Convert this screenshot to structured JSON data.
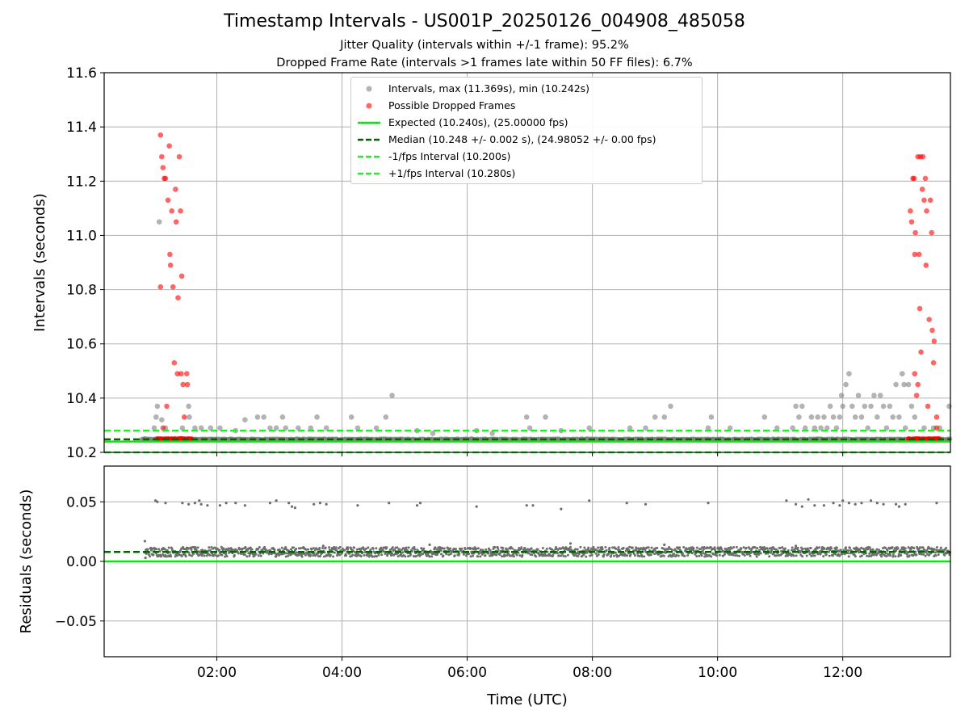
{
  "header": {
    "title": "Timestamp Intervals - US001P_20250126_004908_485058",
    "subtitle1": "Jitter Quality (intervals within +/-1 frame): 95.2%",
    "subtitle2": "Dropped Frame Rate (intervals >1 frames late within 50 FF files): 6.7%"
  },
  "colors": {
    "interval_points": "#808080",
    "dropped_points": "#ff0000",
    "expected_line": "#00ee00",
    "median_line": "#006400",
    "fps_interval_lines": "#22ee22",
    "residual_points": "#6e6e6e"
  },
  "chart_data": [
    {
      "type": "scatter",
      "panel": "top",
      "ylabel": "Intervals (seconds)",
      "ylim": [
        10.2,
        11.6
      ],
      "xlim_hours": [
        0.2,
        13.72
      ],
      "yticks": [
        "10.2",
        "10.4",
        "10.6",
        "10.8",
        "11.0",
        "11.2",
        "11.4",
        "11.6"
      ],
      "grid": true,
      "legend_position": "upper center",
      "legend": [
        "Intervals, max (11.369s), min (10.242s)",
        "Possible Dropped Frames",
        "Expected (10.240s), (25.00000 fps)",
        "Median (10.248 +/- 0.002 s), (24.98052 +/- 0.00 fps)",
        "-1/fps Interval (10.200s)",
        "+1/fps Interval (10.280s)"
      ],
      "reference_lines": {
        "expected": 10.24,
        "median": 10.248,
        "minus_1fps": 10.2,
        "plus_1fps": 10.28
      },
      "baseline_band": {
        "x_start": 0.8,
        "x_end": 13.72,
        "y_center": 10.248,
        "spread": 0.004
      },
      "series": [
        {
          "name": "Intervals, max (11.369s), min (10.242s)",
          "points": [
            [
              0.85,
              10.25
            ],
            [
              1.0,
              10.29
            ],
            [
              1.03,
              10.33
            ],
            [
              1.05,
              10.37
            ],
            [
              1.08,
              11.05
            ],
            [
              1.12,
              10.32
            ],
            [
              1.18,
              10.29
            ],
            [
              1.45,
              10.29
            ],
            [
              1.55,
              10.37
            ],
            [
              1.56,
              10.33
            ],
            [
              1.65,
              10.29
            ],
            [
              1.75,
              10.29
            ],
            [
              1.9,
              10.29
            ],
            [
              2.05,
              10.29
            ],
            [
              2.3,
              10.28
            ],
            [
              2.45,
              10.32
            ],
            [
              2.65,
              10.33
            ],
            [
              2.75,
              10.33
            ],
            [
              2.85,
              10.29
            ],
            [
              2.95,
              10.29
            ],
            [
              3.05,
              10.33
            ],
            [
              3.1,
              10.29
            ],
            [
              3.3,
              10.29
            ],
            [
              3.5,
              10.29
            ],
            [
              3.6,
              10.33
            ],
            [
              3.75,
              10.29
            ],
            [
              4.15,
              10.33
            ],
            [
              4.25,
              10.29
            ],
            [
              4.55,
              10.29
            ],
            [
              4.7,
              10.33
            ],
            [
              4.8,
              10.41
            ],
            [
              5.2,
              10.28
            ],
            [
              5.45,
              10.27
            ],
            [
              6.15,
              10.28
            ],
            [
              6.4,
              10.27
            ],
            [
              6.95,
              10.33
            ],
            [
              7.0,
              10.29
            ],
            [
              7.25,
              10.33
            ],
            [
              7.5,
              10.28
            ],
            [
              7.95,
              10.29
            ],
            [
              8.6,
              10.29
            ],
            [
              8.85,
              10.29
            ],
            [
              9.0,
              10.33
            ],
            [
              9.15,
              10.33
            ],
            [
              9.25,
              10.37
            ],
            [
              9.85,
              10.29
            ],
            [
              9.9,
              10.33
            ],
            [
              10.2,
              10.29
            ],
            [
              10.75,
              10.33
            ],
            [
              10.95,
              10.29
            ],
            [
              11.2,
              10.29
            ],
            [
              11.25,
              10.37
            ],
            [
              11.3,
              10.33
            ],
            [
              11.35,
              10.37
            ],
            [
              11.4,
              10.29
            ],
            [
              11.5,
              10.33
            ],
            [
              11.55,
              10.29
            ],
            [
              11.6,
              10.33
            ],
            [
              11.65,
              10.29
            ],
            [
              11.7,
              10.33
            ],
            [
              11.75,
              10.29
            ],
            [
              11.8,
              10.37
            ],
            [
              11.85,
              10.33
            ],
            [
              11.9,
              10.29
            ],
            [
              11.95,
              10.33
            ],
            [
              11.98,
              10.41
            ],
            [
              12.0,
              10.37
            ],
            [
              12.05,
              10.45
            ],
            [
              12.1,
              10.49
            ],
            [
              12.15,
              10.37
            ],
            [
              12.2,
              10.33
            ],
            [
              12.25,
              10.41
            ],
            [
              12.3,
              10.33
            ],
            [
              12.35,
              10.37
            ],
            [
              12.4,
              10.29
            ],
            [
              12.45,
              10.37
            ],
            [
              12.5,
              10.41
            ],
            [
              12.55,
              10.33
            ],
            [
              12.6,
              10.41
            ],
            [
              12.65,
              10.37
            ],
            [
              12.7,
              10.29
            ],
            [
              12.75,
              10.37
            ],
            [
              12.8,
              10.33
            ],
            [
              12.85,
              10.45
            ],
            [
              12.9,
              10.33
            ],
            [
              12.95,
              10.49
            ],
            [
              12.98,
              10.45
            ],
            [
              13.0,
              10.29
            ],
            [
              13.05,
              10.45
            ],
            [
              13.1,
              10.37
            ],
            [
              13.15,
              10.33
            ],
            [
              13.3,
              10.29
            ],
            [
              13.45,
              10.29
            ],
            [
              13.55,
              10.29
            ],
            [
              13.7,
              10.37
            ]
          ]
        },
        {
          "name": "Possible Dropped Frames",
          "points": [
            [
              1.1,
              11.37
            ],
            [
              1.12,
              11.29
            ],
            [
              1.14,
              11.25
            ],
            [
              1.16,
              11.21
            ],
            [
              1.18,
              11.21
            ],
            [
              1.2,
              10.37
            ],
            [
              1.22,
              11.13
            ],
            [
              1.24,
              11.33
            ],
            [
              1.25,
              10.93
            ],
            [
              1.26,
              10.89
            ],
            [
              1.28,
              11.09
            ],
            [
              1.3,
              10.81
            ],
            [
              1.32,
              10.53
            ],
            [
              1.34,
              11.17
            ],
            [
              1.35,
              11.05
            ],
            [
              1.37,
              10.49
            ],
            [
              1.38,
              10.77
            ],
            [
              1.4,
              11.29
            ],
            [
              1.42,
              11.09
            ],
            [
              1.43,
              10.49
            ],
            [
              1.44,
              10.85
            ],
            [
              1.46,
              10.45
            ],
            [
              1.48,
              10.33
            ],
            [
              1.52,
              10.49
            ],
            [
              1.53,
              10.45
            ],
            [
              1.1,
              10.81
            ],
            [
              1.14,
              10.29
            ],
            [
              13.08,
              11.09
            ],
            [
              13.1,
              11.05
            ],
            [
              13.12,
              11.21
            ],
            [
              13.14,
              11.21
            ],
            [
              13.15,
              10.93
            ],
            [
              13.16,
              11.01
            ],
            [
              13.18,
              10.41
            ],
            [
              13.2,
              11.29
            ],
            [
              13.22,
              10.93
            ],
            [
              13.23,
              10.73
            ],
            [
              13.24,
              11.29
            ],
            [
              13.25,
              10.57
            ],
            [
              13.27,
              11.17
            ],
            [
              13.28,
              11.29
            ],
            [
              13.3,
              11.13
            ],
            [
              13.32,
              11.21
            ],
            [
              13.33,
              10.89
            ],
            [
              13.34,
              11.09
            ],
            [
              13.36,
              10.37
            ],
            [
              13.38,
              10.69
            ],
            [
              13.4,
              11.13
            ],
            [
              13.42,
              11.01
            ],
            [
              13.43,
              10.65
            ],
            [
              13.45,
              10.53
            ],
            [
              13.46,
              10.61
            ],
            [
              13.5,
              10.33
            ],
            [
              13.5,
              10.29
            ],
            [
              13.2,
              10.45
            ],
            [
              13.15,
              10.49
            ]
          ],
          "baseline_clusters": [
            [
              1.05,
              1.6
            ],
            [
              13.05,
              13.55
            ]
          ]
        }
      ]
    },
    {
      "type": "scatter",
      "panel": "bottom",
      "xlabel": "Time (UTC)",
      "ylabel": "Residuals (seconds)",
      "ylim": [
        -0.08,
        0.08
      ],
      "yticks": [
        "−0.05",
        "0.00",
        "0.05"
      ],
      "xticks": [
        "02:00",
        "04:00",
        "06:00",
        "08:00",
        "10:00",
        "12:00"
      ],
      "xtick_hours": [
        2,
        4,
        6,
        8,
        10,
        12
      ],
      "grid": true,
      "reference_lines": {
        "zero": 0.0,
        "median": 0.008
      },
      "baseline_band": {
        "x_start": 0.85,
        "x_end": 13.72,
        "y_center": 0.008,
        "spread": 0.004
      },
      "series": [
        {
          "name": "Residuals",
          "points": [
            [
              0.85,
              0.017
            ],
            [
              0.86,
              0.003
            ],
            [
              1.02,
              0.051
            ],
            [
              1.05,
              0.05
            ],
            [
              1.18,
              0.049
            ],
            [
              1.45,
              0.049
            ],
            [
              1.55,
              0.048
            ],
            [
              1.65,
              0.049
            ],
            [
              1.72,
              0.051
            ],
            [
              1.75,
              0.048
            ],
            [
              1.85,
              0.047
            ],
            [
              2.05,
              0.047
            ],
            [
              2.15,
              0.049
            ],
            [
              2.3,
              0.049
            ],
            [
              2.45,
              0.047
            ],
            [
              2.85,
              0.049
            ],
            [
              2.95,
              0.051
            ],
            [
              3.15,
              0.049
            ],
            [
              3.2,
              0.046
            ],
            [
              3.25,
              0.045
            ],
            [
              3.55,
              0.048
            ],
            [
              3.65,
              0.049
            ],
            [
              3.75,
              0.048
            ],
            [
              4.25,
              0.047
            ],
            [
              4.75,
              0.049
            ],
            [
              5.2,
              0.047
            ],
            [
              5.25,
              0.049
            ],
            [
              6.15,
              0.046
            ],
            [
              6.95,
              0.047
            ],
            [
              7.05,
              0.047
            ],
            [
              7.5,
              0.044
            ],
            [
              7.95,
              0.051
            ],
            [
              8.55,
              0.049
            ],
            [
              8.85,
              0.048
            ],
            [
              9.85,
              0.049
            ],
            [
              11.1,
              0.051
            ],
            [
              11.25,
              0.048
            ],
            [
              11.35,
              0.046
            ],
            [
              11.45,
              0.052
            ],
            [
              11.55,
              0.047
            ],
            [
              11.7,
              0.047
            ],
            [
              11.85,
              0.049
            ],
            [
              11.95,
              0.047
            ],
            [
              12.0,
              0.051
            ],
            [
              12.1,
              0.049
            ],
            [
              12.2,
              0.048
            ],
            [
              12.3,
              0.049
            ],
            [
              12.45,
              0.051
            ],
            [
              12.55,
              0.049
            ],
            [
              12.65,
              0.048
            ],
            [
              12.85,
              0.048
            ],
            [
              12.9,
              0.046
            ],
            [
              13.0,
              0.048
            ],
            [
              13.5,
              0.049
            ],
            [
              5.4,
              0.014
            ],
            [
              7.65,
              0.015
            ],
            [
              9.15,
              0.014
            ],
            [
              3.7,
              0.013
            ],
            [
              11.25,
              0.013
            ]
          ]
        }
      ]
    }
  ]
}
